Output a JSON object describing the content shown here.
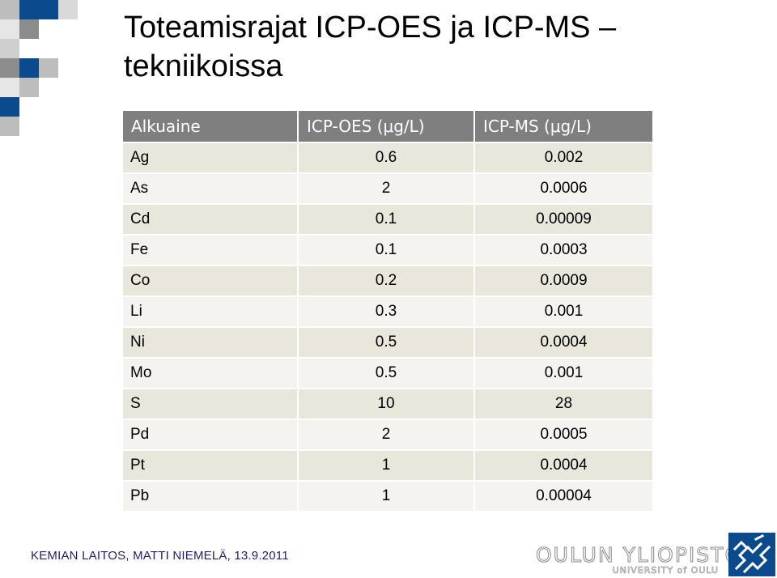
{
  "title": "Toteamisrajat ICP-OES ja ICP-MS – tekniikoissa",
  "table": {
    "headers": [
      "Alkuaine",
      "ICP-OES (μg/L)",
      "ICP-MS (μg/L)"
    ],
    "rows": [
      [
        "Ag",
        "0.6",
        "0.002"
      ],
      [
        "As",
        "2",
        "0.0006"
      ],
      [
        "Cd",
        "0.1",
        "0.00009"
      ],
      [
        "Fe",
        "0.1",
        "0.0003"
      ],
      [
        "Co",
        "0.2",
        "0.0009"
      ],
      [
        "Li",
        "0.3",
        "0.001"
      ],
      [
        "Ni",
        "0.5",
        "0.0004"
      ],
      [
        "Mo",
        "0.5",
        "0.001"
      ],
      [
        "S",
        "10",
        "28"
      ],
      [
        "Pd",
        "2",
        "0.0005"
      ],
      [
        "Pt",
        "1",
        "0.0004"
      ],
      [
        "Pb",
        "1",
        "0.00004"
      ]
    ]
  },
  "footer": "KEMIAN LAITOS, MATTI NIEMELÄ, 13.9.2011",
  "logo": {
    "name": "OULUN YLIOPISTO",
    "subtitle": "UNIVERSITY of OULU",
    "seal_icon": "university-seal-icon"
  },
  "colors": {
    "header_bg": "#7f7f7f",
    "row_odd": "#e9e6dc",
    "row_even": "#f4f3ef",
    "brand_blue": "#0b4a8c",
    "mosaic_grey": "#bdbdbd",
    "footer_text": "#1f1f6e"
  }
}
